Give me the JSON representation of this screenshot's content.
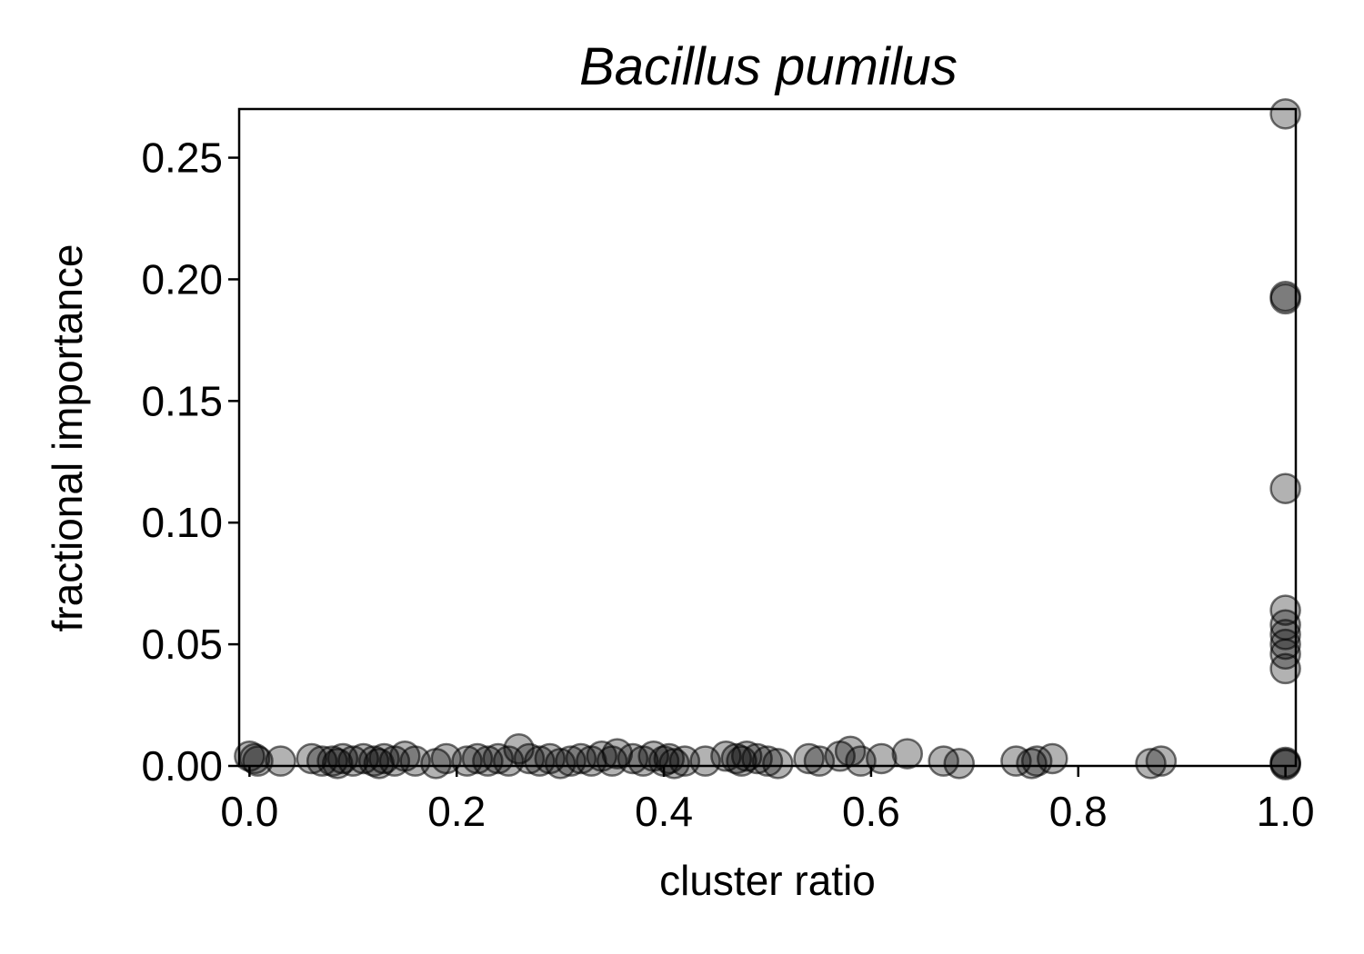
{
  "chart_data": {
    "type": "scatter",
    "title": "Bacillus pumilus",
    "xlabel": "cluster ratio",
    "ylabel": "fractional importance",
    "xlim": [
      -0.01,
      1.01
    ],
    "ylim": [
      0.0,
      0.27
    ],
    "xticks": [
      "0.0",
      "0.2",
      "0.4",
      "0.6",
      "0.8",
      "1.0"
    ],
    "yticks": [
      "0.00",
      "0.05",
      "0.10",
      "0.15",
      "0.20",
      "0.25"
    ],
    "grid": false,
    "marker_color": "#000000",
    "marker_alpha": 0.3,
    "points": [
      {
        "x": 0.0,
        "y": 0.004
      },
      {
        "x": 0.005,
        "y": 0.003
      },
      {
        "x": 0.008,
        "y": 0.002
      },
      {
        "x": 0.03,
        "y": 0.002
      },
      {
        "x": 0.06,
        "y": 0.003
      },
      {
        "x": 0.07,
        "y": 0.002
      },
      {
        "x": 0.08,
        "y": 0.002
      },
      {
        "x": 0.085,
        "y": 0.001
      },
      {
        "x": 0.09,
        "y": 0.003
      },
      {
        "x": 0.1,
        "y": 0.002
      },
      {
        "x": 0.11,
        "y": 0.003
      },
      {
        "x": 0.12,
        "y": 0.002
      },
      {
        "x": 0.125,
        "y": 0.001
      },
      {
        "x": 0.13,
        "y": 0.003
      },
      {
        "x": 0.14,
        "y": 0.002
      },
      {
        "x": 0.15,
        "y": 0.004
      },
      {
        "x": 0.16,
        "y": 0.002
      },
      {
        "x": 0.18,
        "y": 0.001
      },
      {
        "x": 0.19,
        "y": 0.003
      },
      {
        "x": 0.21,
        "y": 0.002
      },
      {
        "x": 0.22,
        "y": 0.003
      },
      {
        "x": 0.23,
        "y": 0.002
      },
      {
        "x": 0.24,
        "y": 0.003
      },
      {
        "x": 0.25,
        "y": 0.002
      },
      {
        "x": 0.26,
        "y": 0.007
      },
      {
        "x": 0.27,
        "y": 0.003
      },
      {
        "x": 0.28,
        "y": 0.002
      },
      {
        "x": 0.29,
        "y": 0.003
      },
      {
        "x": 0.3,
        "y": 0.001
      },
      {
        "x": 0.31,
        "y": 0.002
      },
      {
        "x": 0.32,
        "y": 0.003
      },
      {
        "x": 0.33,
        "y": 0.002
      },
      {
        "x": 0.34,
        "y": 0.004
      },
      {
        "x": 0.35,
        "y": 0.002
      },
      {
        "x": 0.355,
        "y": 0.005
      },
      {
        "x": 0.37,
        "y": 0.003
      },
      {
        "x": 0.38,
        "y": 0.002
      },
      {
        "x": 0.39,
        "y": 0.004
      },
      {
        "x": 0.4,
        "y": 0.002
      },
      {
        "x": 0.405,
        "y": 0.003
      },
      {
        "x": 0.41,
        "y": 0.001
      },
      {
        "x": 0.42,
        "y": 0.002
      },
      {
        "x": 0.44,
        "y": 0.002
      },
      {
        "x": 0.46,
        "y": 0.004
      },
      {
        "x": 0.47,
        "y": 0.003
      },
      {
        "x": 0.475,
        "y": 0.002
      },
      {
        "x": 0.48,
        "y": 0.004
      },
      {
        "x": 0.49,
        "y": 0.003
      },
      {
        "x": 0.5,
        "y": 0.002
      },
      {
        "x": 0.51,
        "y": 0.001
      },
      {
        "x": 0.54,
        "y": 0.003
      },
      {
        "x": 0.55,
        "y": 0.002
      },
      {
        "x": 0.57,
        "y": 0.004
      },
      {
        "x": 0.58,
        "y": 0.006
      },
      {
        "x": 0.59,
        "y": 0.002
      },
      {
        "x": 0.61,
        "y": 0.003
      },
      {
        "x": 0.635,
        "y": 0.005
      },
      {
        "x": 0.67,
        "y": 0.002
      },
      {
        "x": 0.685,
        "y": 0.001
      },
      {
        "x": 0.74,
        "y": 0.002
      },
      {
        "x": 0.755,
        "y": 0.001
      },
      {
        "x": 0.76,
        "y": 0.002
      },
      {
        "x": 0.775,
        "y": 0.003
      },
      {
        "x": 0.87,
        "y": 0.001
      },
      {
        "x": 0.88,
        "y": 0.002
      },
      {
        "x": 1.0,
        "y": 0.268
      },
      {
        "x": 1.0,
        "y": 0.192
      },
      {
        "x": 1.0,
        "y": 0.193
      },
      {
        "x": 1.0,
        "y": 0.114
      },
      {
        "x": 1.0,
        "y": 0.064
      },
      {
        "x": 1.0,
        "y": 0.058
      },
      {
        "x": 1.0,
        "y": 0.054
      },
      {
        "x": 1.0,
        "y": 0.05
      },
      {
        "x": 1.0,
        "y": 0.046
      },
      {
        "x": 1.0,
        "y": 0.04
      },
      {
        "x": 1.0,
        "y": 0.001
      },
      {
        "x": 1.0,
        "y": 0.0005
      },
      {
        "x": 1.0,
        "y": 0.0015
      }
    ]
  }
}
